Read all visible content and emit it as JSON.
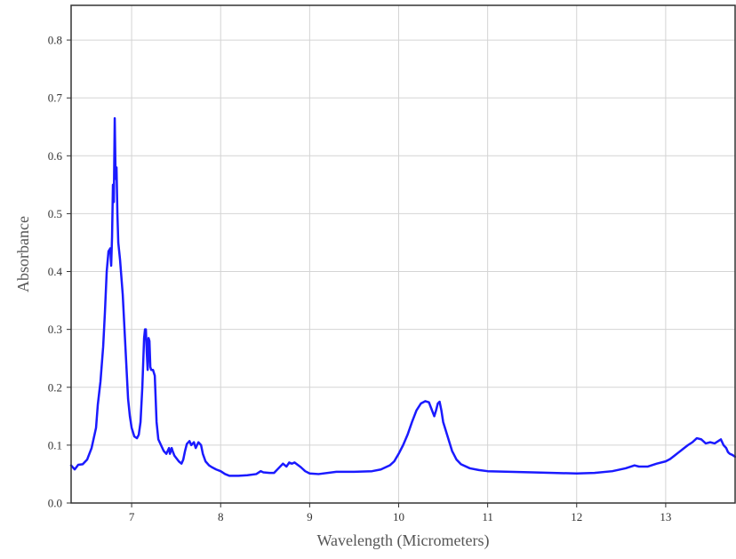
{
  "chart_data": {
    "type": "line",
    "xlabel": "Wavelength (Micrometers)",
    "ylabel": "Absorbance",
    "xlim": [
      6.32,
      13.78
    ],
    "ylim": [
      0.0,
      0.86
    ],
    "x_ticks": [
      7,
      8,
      9,
      10,
      11,
      12,
      13
    ],
    "y_ticks": [
      0.0,
      0.1,
      0.2,
      0.3,
      0.4,
      0.5,
      0.6,
      0.7,
      0.8
    ],
    "y_tick_labels": [
      "0.0",
      "0.1",
      "0.2",
      "0.3",
      "0.4",
      "0.5",
      "0.6",
      "0.7",
      "0.8"
    ],
    "grid": true,
    "line_color": "#1a1aff",
    "series": [
      {
        "x": [
          6.32,
          6.36,
          6.4,
          6.45,
          6.5,
          6.55,
          6.6,
          6.62,
          6.65,
          6.68,
          6.7,
          6.72,
          6.74,
          6.76,
          6.77,
          6.78,
          6.79,
          6.8,
          6.81,
          6.82,
          6.83,
          6.84,
          6.85,
          6.87,
          6.9,
          6.93,
          6.96,
          6.98,
          7.0,
          7.03,
          7.06,
          7.08,
          7.1,
          7.12,
          7.14,
          7.15,
          7.16,
          7.17,
          7.18,
          7.19,
          7.2,
          7.21,
          7.22,
          7.24,
          7.26,
          7.28,
          7.3,
          7.33,
          7.36,
          7.39,
          7.42,
          7.43,
          7.45,
          7.46,
          7.48,
          7.5,
          7.53,
          7.56,
          7.58,
          7.6,
          7.62,
          7.65,
          7.67,
          7.7,
          7.72,
          7.75,
          7.78,
          7.8,
          7.83,
          7.87,
          7.9,
          7.95,
          8.0,
          8.05,
          8.1,
          8.2,
          8.3,
          8.4,
          8.45,
          8.48,
          8.55,
          8.6,
          8.65,
          8.7,
          8.74,
          8.77,
          8.8,
          8.83,
          8.9,
          8.95,
          9.0,
          9.1,
          9.3,
          9.5,
          9.7,
          9.8,
          9.9,
          9.95,
          10.0,
          10.05,
          10.1,
          10.15,
          10.2,
          10.25,
          10.3,
          10.34,
          10.37,
          10.4,
          10.42,
          10.44,
          10.46,
          10.48,
          10.5,
          10.55,
          10.6,
          10.65,
          10.7,
          10.8,
          10.9,
          11.0,
          11.5,
          12.0,
          12.2,
          12.4,
          12.55,
          12.65,
          12.7,
          12.8,
          12.9,
          13.0,
          13.05,
          13.1,
          13.15,
          13.2,
          13.25,
          13.3,
          13.35,
          13.4,
          13.45,
          13.5,
          13.55,
          13.6,
          13.62,
          13.65,
          13.68,
          13.7,
          13.72,
          13.75,
          13.78
        ],
        "values": [
          0.065,
          0.058,
          0.066,
          0.067,
          0.075,
          0.095,
          0.13,
          0.17,
          0.21,
          0.27,
          0.33,
          0.4,
          0.435,
          0.44,
          0.41,
          0.46,
          0.55,
          0.52,
          0.665,
          0.56,
          0.58,
          0.5,
          0.45,
          0.42,
          0.36,
          0.27,
          0.18,
          0.15,
          0.13,
          0.115,
          0.112,
          0.118,
          0.14,
          0.2,
          0.285,
          0.3,
          0.3,
          0.26,
          0.23,
          0.285,
          0.28,
          0.235,
          0.23,
          0.23,
          0.22,
          0.14,
          0.11,
          0.1,
          0.09,
          0.085,
          0.095,
          0.085,
          0.095,
          0.09,
          0.082,
          0.078,
          0.072,
          0.068,
          0.075,
          0.09,
          0.102,
          0.107,
          0.1,
          0.105,
          0.095,
          0.105,
          0.1,
          0.085,
          0.072,
          0.065,
          0.062,
          0.058,
          0.055,
          0.05,
          0.047,
          0.047,
          0.048,
          0.05,
          0.055,
          0.053,
          0.052,
          0.052,
          0.06,
          0.068,
          0.063,
          0.07,
          0.068,
          0.07,
          0.062,
          0.055,
          0.051,
          0.05,
          0.054,
          0.054,
          0.055,
          0.058,
          0.065,
          0.072,
          0.085,
          0.1,
          0.118,
          0.14,
          0.16,
          0.172,
          0.176,
          0.174,
          0.162,
          0.15,
          0.16,
          0.172,
          0.175,
          0.16,
          0.14,
          0.115,
          0.09,
          0.075,
          0.067,
          0.06,
          0.057,
          0.055,
          0.053,
          0.051,
          0.052,
          0.055,
          0.06,
          0.065,
          0.063,
          0.063,
          0.068,
          0.072,
          0.076,
          0.082,
          0.088,
          0.094,
          0.1,
          0.105,
          0.112,
          0.11,
          0.103,
          0.105,
          0.103,
          0.108,
          0.11,
          0.1,
          0.095,
          0.088,
          0.085,
          0.083,
          0.08
        ]
      }
    ]
  }
}
